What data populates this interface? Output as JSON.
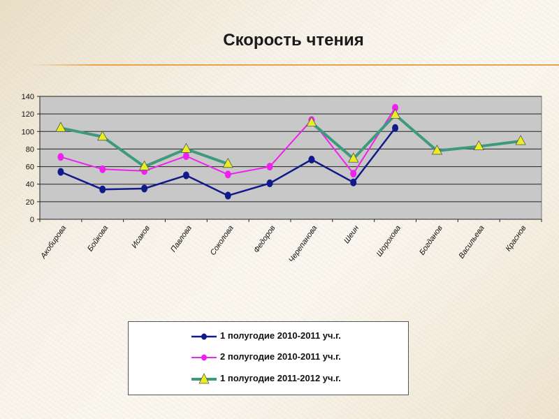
{
  "title": "Скорость чтения",
  "colors": {
    "series1": "#111a8a",
    "series2": "#ee22ee",
    "series3": "#3c9a7e",
    "marker3": "#e8ee22",
    "plot_bg": "#c8c8c8",
    "accent_rule": "#e7a24a"
  },
  "chart_data": {
    "type": "line",
    "title": "Скорость чтения",
    "xlabel": "",
    "ylabel": "",
    "ylim": [
      0,
      140
    ],
    "yticks": [
      0,
      20,
      40,
      60,
      80,
      100,
      120,
      140
    ],
    "grid": true,
    "legend_position": "bottom",
    "categories": [
      "Акобирова",
      "Бойкова",
      "Исаков",
      "Павлова",
      "Соколова",
      "Федоров",
      "Черепанова",
      "Шеин",
      "Шорохова",
      "Богданов",
      "Васильева",
      "Краснов"
    ],
    "series": [
      {
        "name": "1 полугодие 2010-2011 уч.г.",
        "marker": "circle",
        "values": [
          54,
          34,
          35,
          50,
          27,
          41,
          68,
          42,
          104,
          null,
          null,
          null
        ]
      },
      {
        "name": "2 полугодие 2010-2011 уч.г.",
        "marker": "circle",
        "values": [
          71,
          57,
          55,
          72,
          51,
          60,
          113,
          52,
          127,
          null,
          null,
          null
        ]
      },
      {
        "name": "1 полугодие 2011-2012 уч.г.",
        "marker": "triangle",
        "values": [
          104,
          94,
          60,
          80,
          63,
          null,
          110,
          69,
          119,
          78,
          83,
          89
        ]
      }
    ]
  }
}
